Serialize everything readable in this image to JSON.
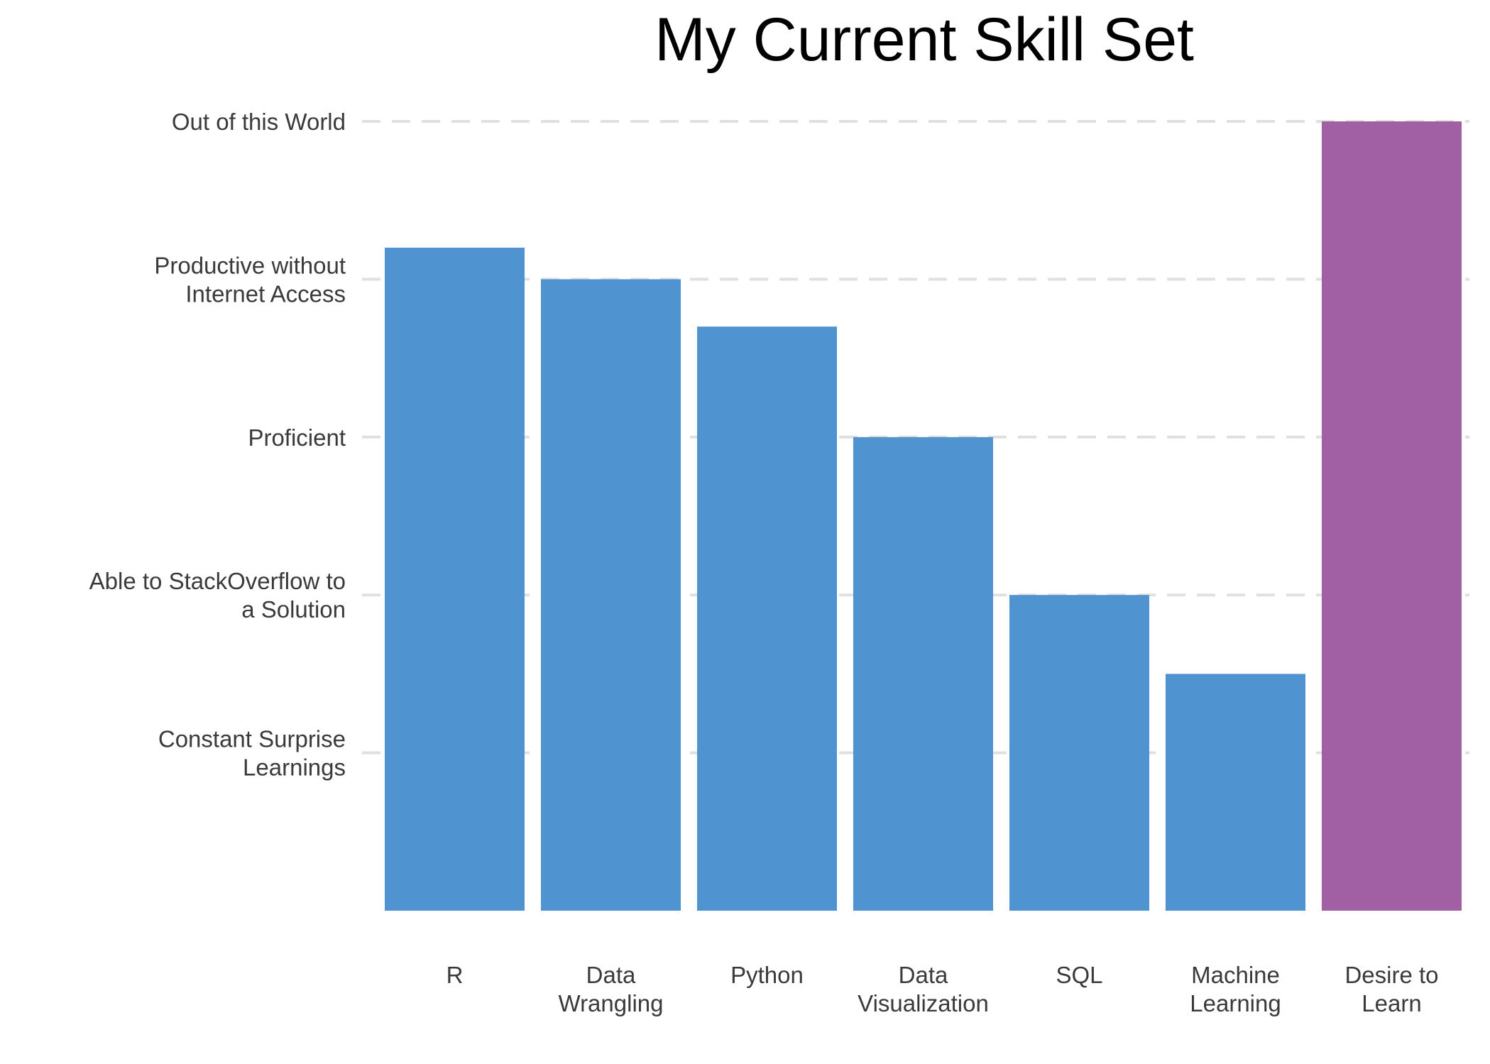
{
  "chart_data": {
    "type": "bar",
    "title": "My Current Skill Set",
    "xlabel": "",
    "ylabel": "",
    "categories": [
      "R",
      "Data Wrangling",
      "Python",
      "Data Visualization",
      "SQL",
      "Machine Learning",
      "Desire to Learn"
    ],
    "category_lines": [
      [
        "R"
      ],
      [
        "Data",
        "Wrangling"
      ],
      [
        "Python"
      ],
      [
        "Data",
        "Visualization"
      ],
      [
        "SQL"
      ],
      [
        "Machine",
        "Learning"
      ],
      [
        "Desire to",
        "Learn"
      ]
    ],
    "values": [
      4.2,
      4.0,
      3.7,
      3.0,
      2.0,
      1.5,
      5.0
    ],
    "ylim": [
      0,
      5
    ],
    "yticks": [
      {
        "value": 1,
        "lines": [
          "Constant Surprise",
          "Learnings"
        ]
      },
      {
        "value": 2,
        "lines": [
          "Able to StackOverflow to",
          "a Solution"
        ]
      },
      {
        "value": 3,
        "lines": [
          "Proficient"
        ]
      },
      {
        "value": 4,
        "lines": [
          "Productive without",
          "Internet Access"
        ]
      },
      {
        "value": 5,
        "lines": [
          "Out of this World"
        ]
      }
    ],
    "grid": "horizontal-dashed",
    "legend": "none",
    "colors": {
      "bar": "#4f93d1",
      "highlight": "#a15fa4",
      "grid": "#e0e0e0",
      "tick_text": "#3a3a3a",
      "title_text": "#000000"
    },
    "highlight_category": "Desire to Learn"
  }
}
